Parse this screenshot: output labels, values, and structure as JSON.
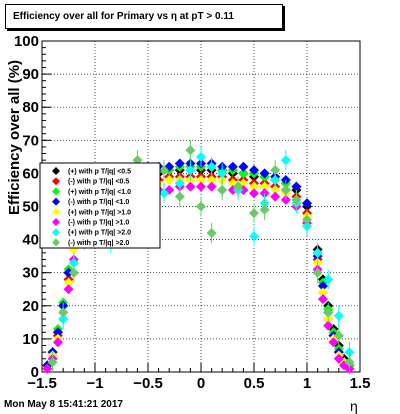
{
  "title": "Efficiency over all for Primary vs   η at pT > 0.11",
  "footer": "Mon May  8 15:41:21 2017",
  "chart_data": {
    "type": "scatter",
    "xlabel": "η",
    "ylabel": "Efficiency over all (%)",
    "xlim": [
      -1.5,
      1.5
    ],
    "ylim": [
      0,
      100
    ],
    "xticks": [
      "−1.5",
      "−1",
      "−0.5",
      "0",
      "0.5",
      "1",
      "1.5"
    ],
    "yticks": [
      "0",
      "10",
      "20",
      "30",
      "40",
      "50",
      "60",
      "70",
      "80",
      "90",
      "100"
    ],
    "grid": true,
    "legend_position": "left-middle",
    "series": [
      {
        "name": "(+) with p T/|q| <0.5",
        "color": "#000000",
        "marker": "diamond",
        "x": [
          -1.45,
          -1.4,
          -1.35,
          -1.3,
          -1.25,
          -1.2,
          -1.15,
          -1.1,
          -1.0,
          -0.9,
          -0.8,
          -0.7,
          -0.6,
          -0.5,
          -0.4,
          -0.3,
          -0.2,
          -0.1,
          0.0,
          0.1,
          0.2,
          0.3,
          0.4,
          0.5,
          0.6,
          0.7,
          0.8,
          0.9,
          1.0,
          1.1,
          1.15,
          1.2,
          1.25,
          1.3,
          1.35,
          1.4
        ],
        "y": [
          2,
          6,
          12,
          20,
          30,
          40,
          48,
          52,
          56,
          58,
          59,
          59,
          60,
          60,
          60,
          61,
          61,
          61,
          61,
          61,
          61,
          60,
          60,
          59,
          59,
          58,
          57,
          55,
          50,
          37,
          28,
          20,
          13,
          8,
          4,
          2
        ]
      },
      {
        "name": "(-) with p T/|q| <0.5",
        "color": "#ff0000",
        "marker": "diamond",
        "x": [
          -1.45,
          -1.4,
          -1.35,
          -1.3,
          -1.25,
          -1.2,
          -1.15,
          -1.1,
          -1.0,
          -0.9,
          -0.8,
          -0.7,
          -0.6,
          -0.5,
          -0.4,
          -0.3,
          -0.2,
          -0.1,
          0.0,
          0.1,
          0.2,
          0.3,
          0.4,
          0.5,
          0.6,
          0.7,
          0.8,
          0.9,
          1.0,
          1.1,
          1.15,
          1.2,
          1.25,
          1.3,
          1.35,
          1.4
        ],
        "y": [
          1,
          5,
          11,
          18,
          28,
          38,
          46,
          50,
          54,
          56,
          57,
          57,
          58,
          58,
          58,
          59,
          59,
          59,
          59,
          59,
          59,
          58,
          58,
          57,
          57,
          56,
          55,
          53,
          48,
          34,
          24,
          16,
          11,
          6,
          3,
          1
        ]
      },
      {
        "name": "(+) with p T/|q| <1.0",
        "color": "#00ff00",
        "marker": "diamond",
        "x": [
          -1.45,
          -1.4,
          -1.35,
          -1.3,
          -1.25,
          -1.2,
          -1.15,
          -1.1,
          -1.0,
          -0.9,
          -0.8,
          -0.7,
          -0.6,
          -0.5,
          -0.4,
          -0.3,
          -0.2,
          -0.1,
          0.0,
          0.1,
          0.2,
          0.3,
          0.4,
          0.5,
          0.6,
          0.7,
          0.8,
          0.9,
          1.0,
          1.1,
          1.15,
          1.2,
          1.25,
          1.3,
          1.35,
          1.4
        ],
        "y": [
          2,
          6,
          13,
          21,
          31,
          41,
          49,
          53,
          57,
          59,
          59,
          60,
          60,
          61,
          61,
          61,
          62,
          62,
          62,
          62,
          61,
          61,
          60,
          60,
          59,
          58,
          57,
          56,
          51,
          36,
          27,
          19,
          12,
          7,
          3,
          2
        ]
      },
      {
        "name": "(-) with p T/|q| <1.0",
        "color": "#0000ff",
        "marker": "diamond",
        "x": [
          -1.45,
          -1.4,
          -1.35,
          -1.3,
          -1.25,
          -1.2,
          -1.15,
          -1.1,
          -1.0,
          -0.9,
          -0.8,
          -0.7,
          -0.6,
          -0.5,
          -0.4,
          -0.3,
          -0.2,
          -0.1,
          0.0,
          0.1,
          0.2,
          0.3,
          0.4,
          0.5,
          0.6,
          0.7,
          0.8,
          0.9,
          1.0,
          1.1,
          1.15,
          1.2,
          1.25,
          1.3,
          1.35,
          1.4
        ],
        "y": [
          2,
          6,
          12,
          20,
          30,
          41,
          49,
          53,
          58,
          60,
          61,
          61,
          62,
          62,
          62,
          62,
          63,
          63,
          63,
          63,
          62,
          62,
          62,
          61,
          60,
          59,
          58,
          56,
          51,
          35,
          26,
          18,
          11,
          6,
          3,
          1
        ]
      },
      {
        "name": "(+) with p T/|q| >1.0",
        "color": "#ffff00",
        "marker": "diamond",
        "x": [
          -1.45,
          -1.4,
          -1.35,
          -1.3,
          -1.25,
          -1.2,
          -1.15,
          -1.1,
          -1.0,
          -0.9,
          -0.8,
          -0.7,
          -0.6,
          -0.5,
          -0.4,
          -0.3,
          -0.2,
          -0.1,
          0.0,
          0.1,
          0.2,
          0.3,
          0.4,
          0.5,
          0.6,
          0.7,
          0.8,
          0.9,
          1.0,
          1.1,
          1.15,
          1.2,
          1.25,
          1.3,
          1.35,
          1.4
        ],
        "y": [
          1,
          5,
          10,
          18,
          27,
          37,
          45,
          49,
          53,
          55,
          56,
          56,
          57,
          57,
          57,
          58,
          58,
          58,
          58,
          58,
          58,
          57,
          57,
          56,
          56,
          55,
          54,
          52,
          47,
          33,
          24,
          16,
          10,
          5,
          3,
          1
        ]
      },
      {
        "name": "(-) with p T/|q| >1.0",
        "color": "#ff00ff",
        "marker": "diamond",
        "x": [
          -1.45,
          -1.4,
          -1.35,
          -1.3,
          -1.25,
          -1.2,
          -1.15,
          -1.1,
          -1.0,
          -0.9,
          -0.8,
          -0.7,
          -0.6,
          -0.5,
          -0.4,
          -0.3,
          -0.2,
          -0.1,
          0.0,
          0.1,
          0.2,
          0.3,
          0.4,
          0.5,
          0.6,
          0.7,
          0.8,
          0.9,
          1.0,
          1.1,
          1.15,
          1.2,
          1.25,
          1.3,
          1.35,
          1.4
        ],
        "y": [
          1,
          4,
          9,
          16,
          25,
          34,
          41,
          45,
          50,
          52,
          53,
          54,
          54,
          55,
          55,
          55,
          56,
          56,
          56,
          56,
          55,
          55,
          55,
          54,
          54,
          53,
          52,
          50,
          45,
          31,
          22,
          14,
          9,
          4,
          2,
          1
        ]
      },
      {
        "name": "(+) with p T/|q| >2.0",
        "color": "#00ffff",
        "marker": "diamond",
        "x": [
          -1.4,
          -1.3,
          -1.2,
          -1.1,
          -1.0,
          -0.85,
          -0.75,
          -0.6,
          -0.45,
          -0.35,
          -0.2,
          -0.1,
          0.0,
          0.1,
          0.2,
          0.35,
          0.5,
          0.6,
          0.7,
          0.8,
          0.9,
          1.0,
          1.1,
          1.2,
          1.3,
          1.4
        ],
        "y": [
          3,
          16,
          33,
          44,
          52,
          39,
          58,
          50,
          47,
          54,
          57,
          61,
          65,
          62,
          60,
          55,
          41,
          51,
          58,
          64,
          51,
          44,
          36,
          28,
          17,
          6
        ]
      },
      {
        "name": "(-) with p T/|q| >2.0",
        "color": "#66cc66",
        "marker": "diamond",
        "x": [
          -1.4,
          -1.3,
          -1.2,
          -1.1,
          -1.0,
          -0.85,
          -0.75,
          -0.6,
          -0.45,
          -0.35,
          -0.2,
          -0.1,
          0.0,
          0.1,
          0.2,
          0.35,
          0.5,
          0.6,
          0.7,
          0.8,
          0.9,
          1.0,
          1.1,
          1.2,
          1.3,
          1.4
        ],
        "y": [
          3,
          18,
          30,
          40,
          55,
          47,
          43,
          64,
          58,
          61,
          53,
          67,
          50,
          42,
          55,
          56,
          48,
          49,
          61,
          55,
          52,
          46,
          30,
          18,
          11,
          3
        ]
      }
    ]
  }
}
